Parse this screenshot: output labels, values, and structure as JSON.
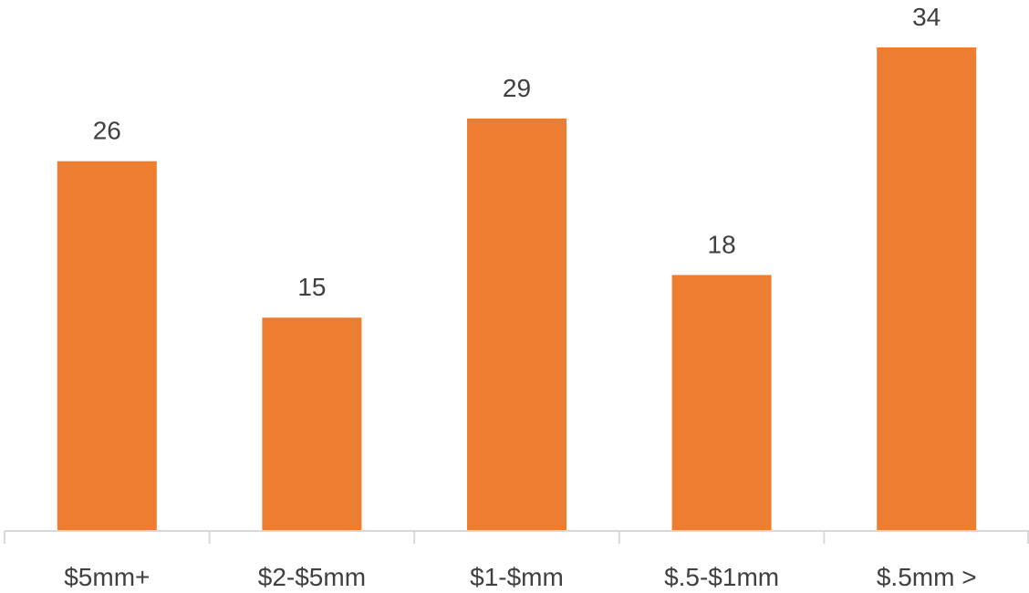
{
  "chart_data": {
    "type": "bar",
    "title": "",
    "xlabel": "",
    "ylabel": "",
    "categories": [
      "$5mm+",
      "$2-$5mm",
      "$1-$mm",
      "$.5-$1mm",
      "$.5mm >"
    ],
    "values": [
      26,
      15,
      29,
      18,
      34
    ],
    "ylim": [
      0,
      34
    ],
    "grid": false,
    "legend": "none",
    "bar_color": "#ED7D31",
    "axis_color": "#D9D9D9",
    "label_color": "#404040"
  }
}
